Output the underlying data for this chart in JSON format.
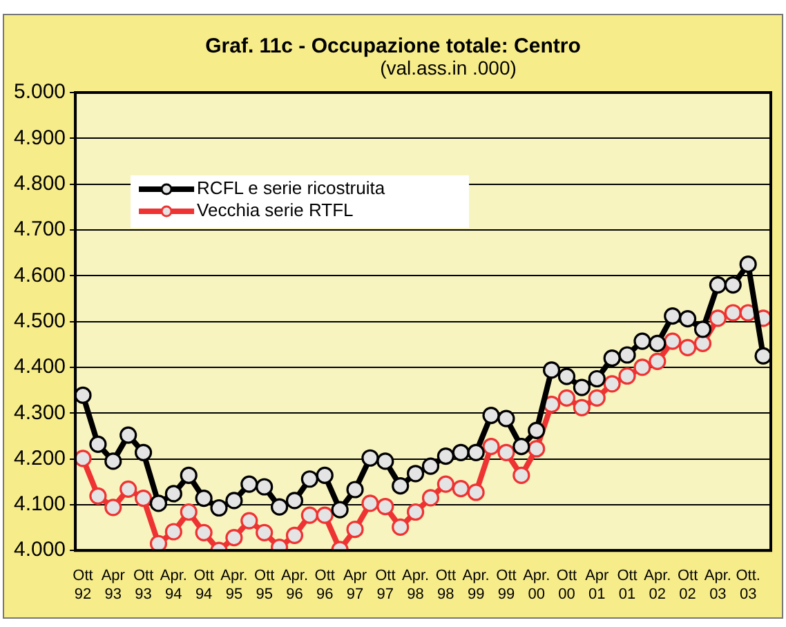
{
  "chart_data": {
    "type": "line",
    "title": "Graf. 11c - Occupazione totale: Centro",
    "subtitle": "(val.ass.in .000)",
    "categories": [
      "Ott 92",
      null,
      "Apr 93",
      null,
      "Ott 93",
      null,
      "Apr. 94",
      null,
      "Ott 94",
      null,
      "Apr. 95",
      null,
      "Ott 95",
      null,
      "Apr. 96",
      null,
      "Ott 96",
      null,
      "Apr 97",
      null,
      "Ott 97",
      null,
      "Apr. 98",
      null,
      "Ott 98",
      null,
      "Apr. 99",
      null,
      "Ott 99",
      null,
      "Apr. 00",
      null,
      "Ott 00",
      null,
      "Apr 01",
      null,
      "Ott 01",
      null,
      "Apr. 02",
      null,
      "Ott 02",
      null,
      "Apr. 03",
      null,
      "Ott. 03",
      null
    ],
    "series": [
      {
        "name": "RCFL e serie ricostruita",
        "color": "#000000",
        "values": [
          4339,
          4232,
          4195,
          4252,
          4214,
          4103,
          4124,
          4164,
          4114,
          4093,
          4109,
          4145,
          4139,
          4095,
          4109,
          4156,
          4164,
          4089,
          4133,
          4202,
          4195,
          4141,
          4168,
          4184,
          4206,
          4214,
          4214,
          4295,
          4288,
          4227,
          4262,
          4394,
          4380,
          4356,
          4375,
          4420,
          4427,
          4457,
          4452,
          4512,
          4506,
          4483,
          4580,
          4580,
          4625,
          4425
        ]
      },
      {
        "name": "Vecchia serie RTFL",
        "color": "#ee3333",
        "values": [
          4201,
          4119,
          4094,
          4134,
          4114,
          4015,
          4041,
          4084,
          4039,
          4000,
          4028,
          4065,
          4039,
          4007,
          4033,
          4077,
          4077,
          4002,
          4046,
          4103,
          4096,
          4051,
          4084,
          4115,
          4145,
          4135,
          4127,
          4227,
          4214,
          4164,
          4222,
          4319,
          4333,
          4312,
          4333,
          4364,
          4381,
          4400,
          4413,
          4457,
          4443,
          4452,
          4507,
          4519,
          4519,
          4507
        ]
      }
    ],
    "ylim": [
      4000,
      5000
    ],
    "yticks": [
      {
        "value": 4000,
        "label": "4.000"
      },
      {
        "value": 4100,
        "label": "4.100"
      },
      {
        "value": 4200,
        "label": "4.200"
      },
      {
        "value": 4300,
        "label": "4.300"
      },
      {
        "value": 4400,
        "label": "4.400"
      },
      {
        "value": 4500,
        "label": "4.500"
      },
      {
        "value": 4600,
        "label": "4.600"
      },
      {
        "value": 4700,
        "label": "4.700"
      },
      {
        "value": 4800,
        "label": "4.800"
      },
      {
        "value": 4900,
        "label": "4.900"
      },
      {
        "value": 5000,
        "label": "5.000"
      }
    ],
    "grid": "y",
    "legend": "top left",
    "marker": "circle",
    "line_style": "solid"
  }
}
